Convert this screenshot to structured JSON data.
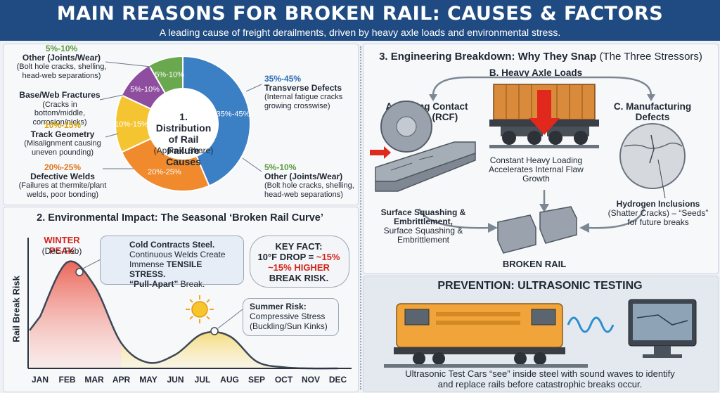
{
  "header": {
    "title": "MAIN REASONS FOR BROKEN RAIL: CAUSES & FACTORS",
    "subtitle": "A leading cause of freight derailments, driven by heavy axle loads and environmental stress."
  },
  "section1": {
    "center_title": "1. Distribution of Rail Failure Causes",
    "center_note": "(Approx. Share)",
    "slice_labels": [
      "35%-45%",
      "20%-25%",
      "10%-15%",
      "5%-10%",
      "5%-10%"
    ],
    "colors": {
      "transverse": "#3b7fc4",
      "welds": "#f08a2c",
      "geometry": "#f5c531",
      "base": "#8e4d9f",
      "other": "#6aa84f"
    },
    "callouts": [
      {
        "pct": "5%-10%",
        "name": "Other (Joints/Wear)",
        "desc": "(Bolt hole cracks, shelling, head-web separations)"
      },
      {
        "pct": "35%-45%",
        "name": "Transverse Defects",
        "desc": "(Internal fatigue cracks growing crosswise)"
      },
      {
        "pct": "",
        "name": "Base/Web Fractures",
        "desc": "(Cracks in bottom/middle, corrosion/nicks)"
      },
      {
        "pct": "10%-15%",
        "name": "Track Geometry",
        "desc": "(Misalignment causing uneven pounding)"
      },
      {
        "pct": "5%-10%",
        "name": "Other (Joints/Wear)",
        "desc": "(Bolt hole cracks, shelling, head-web separations)"
      },
      {
        "pct": "20%-25%",
        "name": "Defective Welds",
        "desc": "(Failures at thermite/plant welds, poor bonding)"
      }
    ]
  },
  "section2": {
    "title": "2. Environmental Impact: The Seasonal ‘Broken Rail Curve’",
    "winter_peak": "WINTER PEAK",
    "winter_months": "(Dec–Feb)",
    "cold_box": {
      "l1": "Cold Contracts Steel.",
      "l2": "Continuous Welds Create",
      "l3a": "Immense ",
      "l3b": "TENSILE STRESS.",
      "l4a": "“Pull-Apart”",
      "l4b": " Break."
    },
    "key_fact": {
      "l1": "KEY FACT:",
      "l2a": "10°F DROP = ",
      "l2b": "~15%",
      "l3": "~15% HIGHER",
      "l4": "BREAK RISK."
    },
    "summer_box": {
      "l1": "Summer Risk:",
      "l2": "Compressive Stress",
      "l3": "(Buckling/Sun Kinks)"
    },
    "ylabel": "Rail Break Risk",
    "months": [
      "JAN",
      "FEB",
      "MAR",
      "APR",
      "MAY",
      "JUN",
      "JUL",
      "AUG",
      "SEP",
      "OCT",
      "NOV",
      "DEC"
    ],
    "risk": [
      0.45,
      0.92,
      0.72,
      0.22,
      0.05,
      0.12,
      0.3,
      0.28,
      0.06,
      0.01,
      0.0,
      0.0
    ]
  },
  "section3": {
    "title_bold": "3. Engineering Breakdown: Why They Snap",
    "title_rest": " (The Three Stressors)",
    "b_title": "B. Heavy Axle Loads",
    "a_title": "A. Rolling Contact Fatigue (RCF)",
    "c_title": "C. Manufacturing Defects",
    "b_desc": "Constant Heavy Loading Accelerates Internal Flaw Growth",
    "a_desc_bold": "Surface Squashing & Embrittlement,",
    "a_desc": "Surface Squashing & Embrittlement",
    "c_desc_bold": "Hydrogen Inclusions",
    "c_desc": "(Shatter Cracks) – “Seeds” for future breaks",
    "broken": "BROKEN RAIL"
  },
  "prevention": {
    "title": "PREVENTION: ULTRASONIC TESTING",
    "text1": "Ultrasonic Test Cars “see” inside steel with sound waves to identify",
    "text2": "and replace rails before catastrophic breaks occur."
  }
}
